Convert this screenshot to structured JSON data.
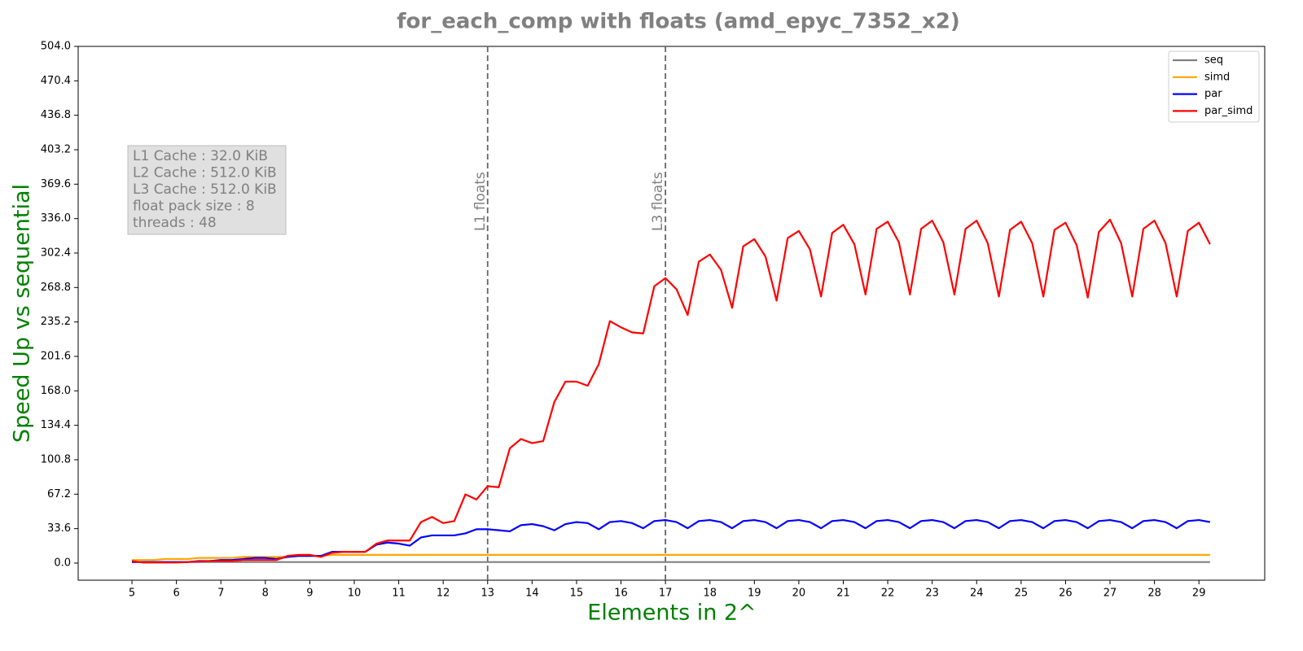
{
  "chart_data": {
    "type": "line",
    "title": "for_each_comp with floats  (amd_epyc_7352_x2)",
    "x_label": "Elements in 2^",
    "y_label": "Speed Up vs sequential",
    "x": [
      5,
      5.25,
      5.5,
      5.75,
      6,
      6.25,
      6.5,
      6.75,
      7,
      7.25,
      7.5,
      7.75,
      8,
      8.25,
      8.5,
      8.75,
      9,
      9.25,
      9.5,
      9.75,
      10,
      10.25,
      10.5,
      10.75,
      11,
      11.25,
      11.5,
      11.75,
      12,
      12.25,
      12.5,
      12.75,
      13,
      13.25,
      13.5,
      13.75,
      14,
      14.25,
      14.5,
      14.75,
      15,
      15.25,
      15.5,
      15.75,
      16,
      16.25,
      16.5,
      16.75,
      17,
      17.25,
      17.5,
      17.75,
      18,
      18.25,
      18.5,
      18.75,
      19,
      19.25,
      19.5,
      19.75,
      20,
      20.25,
      20.5,
      20.75,
      21,
      21.25,
      21.5,
      21.75,
      22,
      22.25,
      22.5,
      22.75,
      23,
      23.25,
      23.5,
      23.75,
      24,
      24.25,
      24.5,
      24.75,
      25,
      25.25,
      25.5,
      25.75,
      26,
      26.25,
      26.5,
      26.75,
      27,
      27.25,
      27.5,
      27.75,
      28,
      28.25,
      28.5,
      28.75,
      29,
      29.25
    ],
    "series": [
      {
        "name": "seq",
        "color": "#808080",
        "values": [
          1,
          1,
          1,
          1,
          1,
          1,
          1,
          1,
          1,
          1,
          1,
          1,
          1,
          1,
          1,
          1,
          1,
          1,
          1,
          1,
          1,
          1,
          1,
          1,
          1,
          1,
          1,
          1,
          1,
          1,
          1,
          1,
          1,
          1,
          1,
          1,
          1,
          1,
          1,
          1,
          1,
          1,
          1,
          1,
          1,
          1,
          1,
          1,
          1,
          1,
          1,
          1,
          1,
          1,
          1,
          1,
          1,
          1,
          1,
          1,
          1,
          1,
          1,
          1,
          1,
          1,
          1,
          1,
          1,
          1,
          1,
          1,
          1,
          1,
          1,
          1,
          1,
          1,
          1,
          1,
          1,
          1,
          1,
          1,
          1,
          1,
          1,
          1,
          1,
          1,
          1,
          1,
          1,
          1,
          1,
          1,
          1,
          1
        ]
      },
      {
        "name": "simd",
        "color": "#ffa500",
        "values": [
          3,
          3,
          3,
          4,
          4,
          4,
          5,
          5,
          5,
          5,
          6,
          6,
          6,
          6,
          6,
          7,
          7,
          7,
          8,
          8,
          8,
          8,
          8,
          8,
          8,
          8,
          8,
          8,
          8,
          8,
          8,
          8,
          8,
          8,
          8,
          8,
          8,
          8,
          8,
          8,
          8,
          8,
          8,
          8,
          8,
          8,
          8,
          8,
          8,
          8,
          8,
          8,
          8,
          8,
          8,
          8,
          8,
          8,
          8,
          8,
          8,
          8,
          8,
          8,
          8,
          8,
          8,
          8,
          8,
          8,
          8,
          8,
          8,
          8,
          8,
          8,
          8,
          8,
          8,
          8,
          8,
          8,
          8,
          8,
          8,
          8,
          8,
          8,
          8,
          8,
          8,
          8,
          8,
          8,
          8,
          8,
          8,
          8
        ]
      },
      {
        "name": "par",
        "color": "#0000ff",
        "values": [
          1,
          1,
          1,
          1,
          1,
          1,
          2,
          2,
          3,
          3,
          4,
          5,
          5,
          4,
          6,
          7,
          7,
          7,
          11,
          11,
          11,
          11,
          18,
          20,
          19,
          17,
          25,
          27,
          27,
          27,
          29,
          33,
          33,
          32,
          31,
          37,
          38,
          36,
          32,
          38,
          40,
          39,
          33,
          40,
          41,
          39,
          34,
          41,
          42,
          40,
          34,
          41,
          42,
          40,
          34,
          41,
          42,
          40,
          34,
          41,
          42,
          40,
          34,
          41,
          42,
          40,
          34,
          41,
          42,
          40,
          34,
          41,
          42,
          40,
          34,
          41,
          42,
          40,
          34,
          41,
          42,
          40,
          34,
          41,
          42,
          40,
          34,
          41,
          42,
          40,
          34,
          41,
          42,
          40,
          34,
          41,
          42,
          40
        ]
      },
      {
        "name": "par_simd",
        "color": "#ff0000",
        "values": [
          2,
          0.5,
          0.5,
          0.5,
          0.5,
          1,
          1.5,
          2,
          2,
          2,
          3,
          3,
          3,
          3,
          7,
          8,
          8,
          6,
          10,
          11,
          11,
          11,
          19,
          22,
          22,
          22,
          40,
          45,
          39,
          41,
          67,
          62,
          75,
          74,
          112,
          121,
          117,
          119,
          157,
          177,
          177,
          173,
          194,
          236,
          230,
          225,
          224,
          270,
          278,
          267,
          242,
          294,
          301,
          286,
          249,
          309,
          316,
          299,
          256,
          317,
          324,
          306,
          260,
          322,
          330,
          311,
          262,
          326,
          333,
          313,
          262,
          326,
          334,
          313,
          262,
          326,
          334,
          312,
          260,
          325,
          333,
          312,
          260,
          325,
          332,
          310,
          259,
          323,
          335,
          312,
          260,
          326,
          334,
          312,
          260,
          324,
          332,
          311
        ]
      }
    ],
    "xlim": [
      3.79,
      30.48
    ],
    "ylim": [
      -16.7,
      504
    ],
    "xticks": [
      5,
      6,
      7,
      8,
      9,
      10,
      11,
      12,
      13,
      14,
      15,
      16,
      17,
      18,
      19,
      20,
      21,
      22,
      23,
      24,
      25,
      26,
      27,
      28,
      29
    ],
    "yticks": [
      {
        "value": 0,
        "label": "0.0"
      },
      33.6,
      67.2,
      100.8,
      134.4,
      {
        "value": 168,
        "label": "168.0"
      },
      201.6,
      235.2,
      268.8,
      302.4,
      {
        "value": 336,
        "label": "336.0"
      },
      369.6,
      403.2,
      436.8,
      470.4,
      {
        "value": 504,
        "label": "504.0"
      }
    ],
    "vlines": [
      {
        "x": 13,
        "label": "L1 floats"
      },
      {
        "x": 17,
        "label": "L3 floats"
      }
    ],
    "info_box": [
      "L1 Cache : 32.0 KiB",
      "L2 Cache : 512.0 KiB",
      "L3 Cache : 512.0 KiB",
      "float pack size : 8",
      "threads : 48"
    ],
    "legend": "upper right",
    "grid": false
  }
}
